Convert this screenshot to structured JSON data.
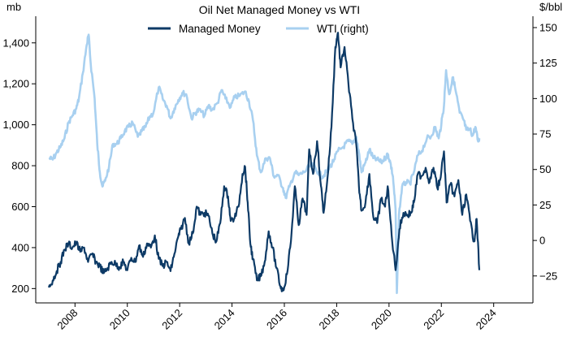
{
  "chart_data": {
    "type": "line",
    "title": "Oil Net Managed Money vs WTI",
    "left_unit": "mb",
    "right_unit": "$/bbl",
    "legend_position": "top-center",
    "grid": false,
    "x_range": [
      2006.5,
      2025.5
    ],
    "x_ticks": [
      2008,
      2010,
      2012,
      2014,
      2016,
      2018,
      2020,
      2022,
      2024
    ],
    "y_left_range": [
      130,
      1530
    ],
    "y_left_ticks": [
      200,
      400,
      600,
      800,
      1000,
      1200,
      1400
    ],
    "y_left_tick_labels": [
      "200",
      "400",
      "600",
      "800",
      "1,000",
      "1,200",
      "1,400"
    ],
    "y_right_range": [
      -44,
      158
    ],
    "y_right_ticks": [
      -25,
      0,
      25,
      50,
      75,
      100,
      125,
      150
    ],
    "y_right_tick_labels": [
      "−25",
      "0",
      "25",
      "50",
      "75",
      "100",
      "125",
      "150"
    ],
    "series": [
      {
        "name": "Managed Money",
        "axis": "left",
        "color": "#0d3a66",
        "points": [
          [
            2007.0,
            205
          ],
          [
            2007.15,
            240
          ],
          [
            2007.3,
            285
          ],
          [
            2007.45,
            330
          ],
          [
            2007.6,
            390
          ],
          [
            2007.75,
            420
          ],
          [
            2007.9,
            400
          ],
          [
            2008.05,
            425
          ],
          [
            2008.2,
            380
          ],
          [
            2008.35,
            400
          ],
          [
            2008.5,
            330
          ],
          [
            2008.65,
            370
          ],
          [
            2008.8,
            330
          ],
          [
            2008.95,
            310
          ],
          [
            2009.1,
            275
          ],
          [
            2009.25,
            300
          ],
          [
            2009.4,
            330
          ],
          [
            2009.55,
            320
          ],
          [
            2009.7,
            305
          ],
          [
            2009.85,
            330
          ],
          [
            2010.0,
            290
          ],
          [
            2010.15,
            350
          ],
          [
            2010.3,
            330
          ],
          [
            2010.45,
            410
          ],
          [
            2010.6,
            355
          ],
          [
            2010.75,
            420
          ],
          [
            2010.9,
            400
          ],
          [
            2011.05,
            460
          ],
          [
            2011.2,
            345
          ],
          [
            2011.35,
            310
          ],
          [
            2011.5,
            330
          ],
          [
            2011.65,
            285
          ],
          [
            2011.8,
            370
          ],
          [
            2011.95,
            455
          ],
          [
            2012.05,
            490
          ],
          [
            2012.2,
            545
          ],
          [
            2012.35,
            420
          ],
          [
            2012.5,
            470
          ],
          [
            2012.65,
            600
          ],
          [
            2012.8,
            560
          ],
          [
            2012.95,
            570
          ],
          [
            2013.1,
            555
          ],
          [
            2013.25,
            470
          ],
          [
            2013.4,
            430
          ],
          [
            2013.55,
            520
          ],
          [
            2013.7,
            700
          ],
          [
            2013.85,
            650
          ],
          [
            2013.95,
            530
          ],
          [
            2014.1,
            545
          ],
          [
            2014.25,
            600
          ],
          [
            2014.4,
            760
          ],
          [
            2014.5,
            795
          ],
          [
            2014.6,
            620
          ],
          [
            2014.7,
            420
          ],
          [
            2014.8,
            345
          ],
          [
            2014.95,
            240
          ],
          [
            2015.1,
            260
          ],
          [
            2015.25,
            330
          ],
          [
            2015.4,
            480
          ],
          [
            2015.55,
            400
          ],
          [
            2015.7,
            300
          ],
          [
            2015.85,
            210
          ],
          [
            2015.95,
            190
          ],
          [
            2016.1,
            270
          ],
          [
            2016.25,
            430
          ],
          [
            2016.4,
            700
          ],
          [
            2016.55,
            510
          ],
          [
            2016.7,
            640
          ],
          [
            2016.85,
            560
          ],
          [
            2016.95,
            880
          ],
          [
            2017.1,
            760
          ],
          [
            2017.25,
            920
          ],
          [
            2017.4,
            700
          ],
          [
            2017.5,
            570
          ],
          [
            2017.65,
            740
          ],
          [
            2017.8,
            990
          ],
          [
            2017.95,
            1380
          ],
          [
            2018.05,
            1450
          ],
          [
            2018.15,
            1280
          ],
          [
            2018.3,
            1380
          ],
          [
            2018.45,
            1200
          ],
          [
            2018.6,
            1030
          ],
          [
            2018.75,
            900
          ],
          [
            2018.85,
            700
          ],
          [
            2018.95,
            580
          ],
          [
            2019.1,
            620
          ],
          [
            2019.25,
            760
          ],
          [
            2019.4,
            550
          ],
          [
            2019.55,
            520
          ],
          [
            2019.7,
            640
          ],
          [
            2019.85,
            600
          ],
          [
            2019.95,
            700
          ],
          [
            2020.1,
            460
          ],
          [
            2020.25,
            290
          ],
          [
            2020.4,
            490
          ],
          [
            2020.55,
            570
          ],
          [
            2020.7,
            560
          ],
          [
            2020.85,
            570
          ],
          [
            2020.95,
            620
          ],
          [
            2021.1,
            760
          ],
          [
            2021.25,
            750
          ],
          [
            2021.4,
            790
          ],
          [
            2021.55,
            720
          ],
          [
            2021.7,
            790
          ],
          [
            2021.85,
            690
          ],
          [
            2021.95,
            730
          ],
          [
            2022.1,
            870
          ],
          [
            2022.2,
            620
          ],
          [
            2022.35,
            710
          ],
          [
            2022.5,
            650
          ],
          [
            2022.65,
            730
          ],
          [
            2022.8,
            560
          ],
          [
            2022.95,
            660
          ],
          [
            2023.1,
            530
          ],
          [
            2023.25,
            430
          ],
          [
            2023.35,
            540
          ],
          [
            2023.45,
            290
          ]
        ]
      },
      {
        "name": "WTI (right)",
        "axis": "right",
        "color": "#a8d0f0",
        "points": [
          [
            2007.0,
            58
          ],
          [
            2007.15,
            57
          ],
          [
            2007.3,
            62
          ],
          [
            2007.45,
            66
          ],
          [
            2007.6,
            72
          ],
          [
            2007.75,
            83
          ],
          [
            2007.9,
            88
          ],
          [
            2008.05,
            93
          ],
          [
            2008.15,
            100
          ],
          [
            2008.3,
            118
          ],
          [
            2008.45,
            138
          ],
          [
            2008.52,
            145
          ],
          [
            2008.6,
            125
          ],
          [
            2008.75,
            100
          ],
          [
            2008.85,
            68
          ],
          [
            2008.95,
            48
          ],
          [
            2009.05,
            38
          ],
          [
            2009.15,
            42
          ],
          [
            2009.3,
            52
          ],
          [
            2009.45,
            68
          ],
          [
            2009.6,
            68
          ],
          [
            2009.75,
            72
          ],
          [
            2009.9,
            77
          ],
          [
            2010.05,
            80
          ],
          [
            2010.2,
            83
          ],
          [
            2010.4,
            73
          ],
          [
            2010.55,
            77
          ],
          [
            2010.7,
            80
          ],
          [
            2010.85,
            87
          ],
          [
            2011.0,
            90
          ],
          [
            2011.2,
            108
          ],
          [
            2011.35,
            100
          ],
          [
            2011.5,
            95
          ],
          [
            2011.65,
            86
          ],
          [
            2011.8,
            93
          ],
          [
            2011.95,
            99
          ],
          [
            2012.1,
            104
          ],
          [
            2012.25,
            103
          ],
          [
            2012.45,
            86
          ],
          [
            2012.6,
            90
          ],
          [
            2012.75,
            92
          ],
          [
            2012.95,
            88
          ],
          [
            2013.1,
            95
          ],
          [
            2013.25,
            92
          ],
          [
            2013.45,
            97
          ],
          [
            2013.6,
            106
          ],
          [
            2013.75,
            100
          ],
          [
            2013.95,
            94
          ],
          [
            2014.1,
            101
          ],
          [
            2014.3,
            102
          ],
          [
            2014.5,
            105
          ],
          [
            2014.65,
            98
          ],
          [
            2014.8,
            85
          ],
          [
            2014.95,
            60
          ],
          [
            2015.1,
            48
          ],
          [
            2015.3,
            58
          ],
          [
            2015.45,
            58
          ],
          [
            2015.6,
            45
          ],
          [
            2015.75,
            46
          ],
          [
            2015.95,
            37
          ],
          [
            2016.05,
            30
          ],
          [
            2016.2,
            38
          ],
          [
            2016.4,
            48
          ],
          [
            2016.55,
            46
          ],
          [
            2016.75,
            48
          ],
          [
            2016.95,
            52
          ],
          [
            2017.1,
            53
          ],
          [
            2017.3,
            48
          ],
          [
            2017.45,
            45
          ],
          [
            2017.6,
            48
          ],
          [
            2017.75,
            52
          ],
          [
            2017.9,
            57
          ],
          [
            2018.05,
            63
          ],
          [
            2018.25,
            66
          ],
          [
            2018.45,
            70
          ],
          [
            2018.6,
            68
          ],
          [
            2018.75,
            73
          ],
          [
            2018.85,
            62
          ],
          [
            2018.95,
            48
          ],
          [
            2019.1,
            55
          ],
          [
            2019.25,
            64
          ],
          [
            2019.4,
            58
          ],
          [
            2019.55,
            57
          ],
          [
            2019.7,
            55
          ],
          [
            2019.85,
            58
          ],
          [
            2019.95,
            61
          ],
          [
            2020.05,
            55
          ],
          [
            2020.15,
            45
          ],
          [
            2020.25,
            22
          ],
          [
            2020.3,
            -37
          ],
          [
            2020.38,
            18
          ],
          [
            2020.5,
            38
          ],
          [
            2020.65,
            41
          ],
          [
            2020.8,
            40
          ],
          [
            2020.95,
            48
          ],
          [
            2021.1,
            60
          ],
          [
            2021.25,
            63
          ],
          [
            2021.45,
            72
          ],
          [
            2021.6,
            73
          ],
          [
            2021.75,
            80
          ],
          [
            2021.9,
            72
          ],
          [
            2022.0,
            82
          ],
          [
            2022.1,
            95
          ],
          [
            2022.18,
            120
          ],
          [
            2022.3,
            103
          ],
          [
            2022.45,
            115
          ],
          [
            2022.55,
            105
          ],
          [
            2022.7,
            90
          ],
          [
            2022.85,
            85
          ],
          [
            2022.95,
            78
          ],
          [
            2023.1,
            78
          ],
          [
            2023.2,
            74
          ],
          [
            2023.3,
            80
          ],
          [
            2023.4,
            70
          ],
          [
            2023.45,
            72
          ]
        ]
      }
    ]
  }
}
